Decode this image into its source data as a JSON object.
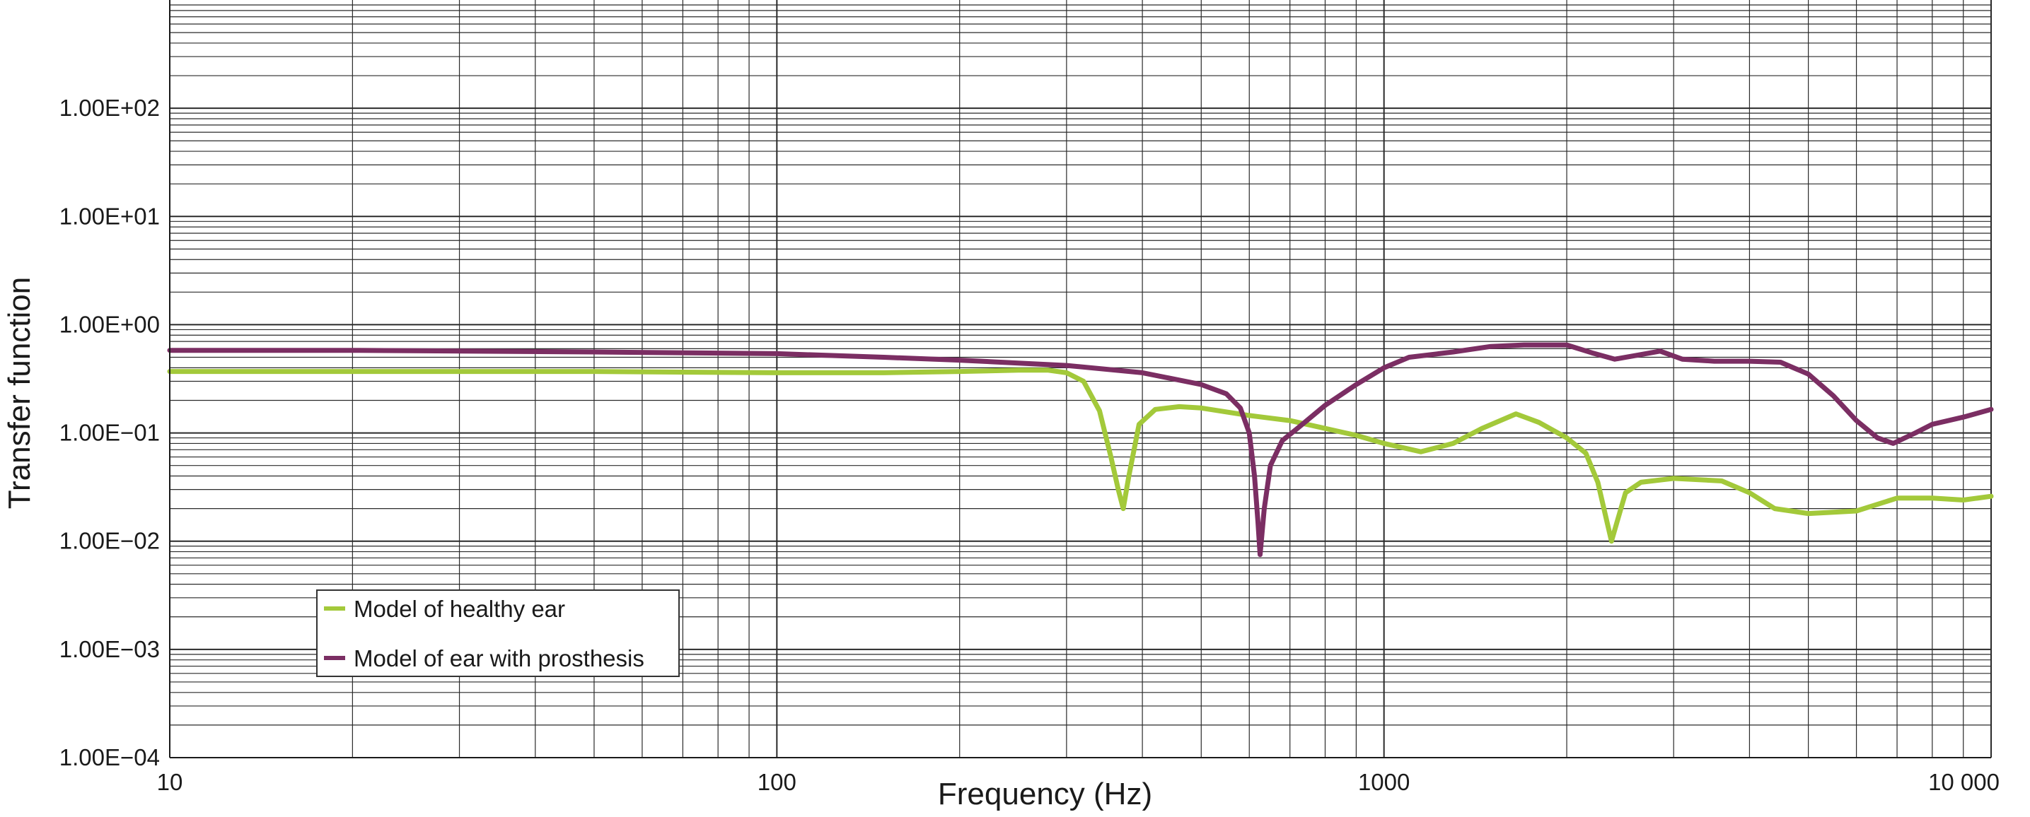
{
  "chart_data": {
    "type": "line",
    "xlabel": "Frequency (Hz)",
    "ylabel": "Transfer function",
    "xscale": "log",
    "yscale": "log",
    "xlim": [
      10,
      10000
    ],
    "ylim": [
      0.0001,
      1000
    ],
    "x_ticks": [
      10,
      100,
      1000,
      10000
    ],
    "x_tick_labels": [
      "10",
      "100",
      "1000",
      "10 000"
    ],
    "y_ticks": [
      0.0001,
      0.001,
      0.01,
      0.1,
      1,
      10,
      100
    ],
    "y_tick_labels": [
      "1.00E−04",
      "1.00E−03",
      "1.00E−02",
      "1.00E−01",
      "1.00E+00",
      "1.00E+01",
      "1.00E+02"
    ],
    "grid": true,
    "legend_position": "bottom-left",
    "series": [
      {
        "name": "Model of healthy ear",
        "color": "#a3c93a",
        "points": [
          [
            10,
            0.37
          ],
          [
            20,
            0.37
          ],
          [
            50,
            0.37
          ],
          [
            100,
            0.36
          ],
          [
            150,
            0.36
          ],
          [
            200,
            0.37
          ],
          [
            250,
            0.38
          ],
          [
            280,
            0.38
          ],
          [
            300,
            0.36
          ],
          [
            320,
            0.3
          ],
          [
            340,
            0.16
          ],
          [
            355,
            0.06
          ],
          [
            365,
            0.03
          ],
          [
            372,
            0.02
          ],
          [
            380,
            0.04
          ],
          [
            395,
            0.12
          ],
          [
            420,
            0.165
          ],
          [
            460,
            0.175
          ],
          [
            500,
            0.17
          ],
          [
            600,
            0.145
          ],
          [
            700,
            0.13
          ],
          [
            800,
            0.11
          ],
          [
            900,
            0.095
          ],
          [
            1000,
            0.08
          ],
          [
            1150,
            0.067
          ],
          [
            1300,
            0.08
          ],
          [
            1450,
            0.11
          ],
          [
            1650,
            0.15
          ],
          [
            1800,
            0.125
          ],
          [
            2000,
            0.09
          ],
          [
            2150,
            0.065
          ],
          [
            2250,
            0.035
          ],
          [
            2330,
            0.015
          ],
          [
            2370,
            0.01
          ],
          [
            2420,
            0.015
          ],
          [
            2500,
            0.028
          ],
          [
            2650,
            0.035
          ],
          [
            3000,
            0.038
          ],
          [
            3600,
            0.036
          ],
          [
            4000,
            0.028
          ],
          [
            4400,
            0.02
          ],
          [
            5000,
            0.018
          ],
          [
            6000,
            0.019
          ],
          [
            7000,
            0.025
          ],
          [
            8000,
            0.025
          ],
          [
            9000,
            0.024
          ],
          [
            10000,
            0.026
          ]
        ]
      },
      {
        "name": "Model of ear with prosthesis",
        "color": "#7b2e63",
        "points": [
          [
            10,
            0.58
          ],
          [
            20,
            0.58
          ],
          [
            50,
            0.56
          ],
          [
            100,
            0.54
          ],
          [
            150,
            0.5
          ],
          [
            200,
            0.47
          ],
          [
            300,
            0.42
          ],
          [
            400,
            0.36
          ],
          [
            500,
            0.28
          ],
          [
            550,
            0.23
          ],
          [
            580,
            0.17
          ],
          [
            600,
            0.1
          ],
          [
            612,
            0.04
          ],
          [
            620,
            0.015
          ],
          [
            625,
            0.0075
          ],
          [
            635,
            0.02
          ],
          [
            650,
            0.05
          ],
          [
            680,
            0.085
          ],
          [
            720,
            0.11
          ],
          [
            800,
            0.18
          ],
          [
            900,
            0.28
          ],
          [
            1000,
            0.4
          ],
          [
            1100,
            0.5
          ],
          [
            1300,
            0.56
          ],
          [
            1500,
            0.63
          ],
          [
            1700,
            0.65
          ],
          [
            2000,
            0.65
          ],
          [
            2200,
            0.55
          ],
          [
            2400,
            0.48
          ],
          [
            2600,
            0.52
          ],
          [
            2850,
            0.57
          ],
          [
            3100,
            0.48
          ],
          [
            3500,
            0.46
          ],
          [
            4000,
            0.46
          ],
          [
            4500,
            0.45
          ],
          [
            5000,
            0.35
          ],
          [
            5500,
            0.22
          ],
          [
            6000,
            0.13
          ],
          [
            6500,
            0.09
          ],
          [
            6900,
            0.08
          ],
          [
            7500,
            0.1
          ],
          [
            8000,
            0.12
          ],
          [
            9000,
            0.14
          ],
          [
            10000,
            0.165
          ]
        ]
      }
    ]
  }
}
